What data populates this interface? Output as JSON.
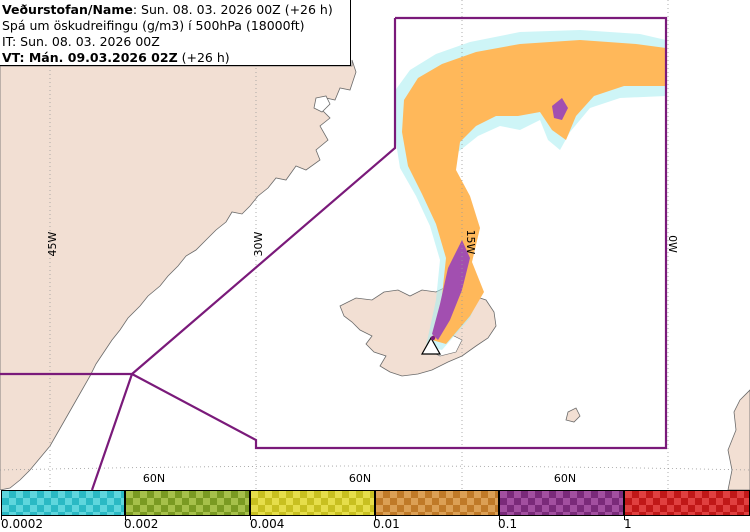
{
  "header": {
    "line1_label": "Veðurstofan/Name",
    "line1_value": ": Sun. 08. 03. 2026 00Z (+26 h)",
    "line2": "Spá um öskudreifingu (g/m3) í 500hPa (18000ft)",
    "line3": "IT: Sun. 08. 03. 2026 00Z",
    "line4_label": "VT: Mán. 09.03.2026 02Z",
    "line4_value": " (+26 h)"
  },
  "map": {
    "grid_labels": {
      "lon45": "45W",
      "lon30": "30W",
      "lon15": "15W",
      "lon0": "0W",
      "lat_left": "60N",
      "lat_mid": "60N",
      "lat_right": "60N"
    },
    "colors": {
      "land": "#f2dfd3",
      "sea": "#ffffff",
      "grid": "#9a9a9a",
      "fir_border": "#7a1a7a",
      "ash_low": "#ffb85a",
      "ash_high": "#a24fb0",
      "ash_fringe": "#a6ecf0"
    }
  },
  "legend": {
    "ticks": [
      "0.0002",
      "0.002",
      "0.004",
      "0.01",
      "0.1",
      "1"
    ],
    "swatch_colors": [
      [
        "#2ab9c4",
        "#5ed6dd"
      ],
      [
        "#7a9a22",
        "#a6c04a"
      ],
      [
        "#c8c020",
        "#e6de4a"
      ],
      [
        "#c07a28",
        "#dca055"
      ],
      [
        "#7a2a7a",
        "#a24fa0"
      ],
      [
        "#c01818",
        "#e04040"
      ]
    ]
  }
}
